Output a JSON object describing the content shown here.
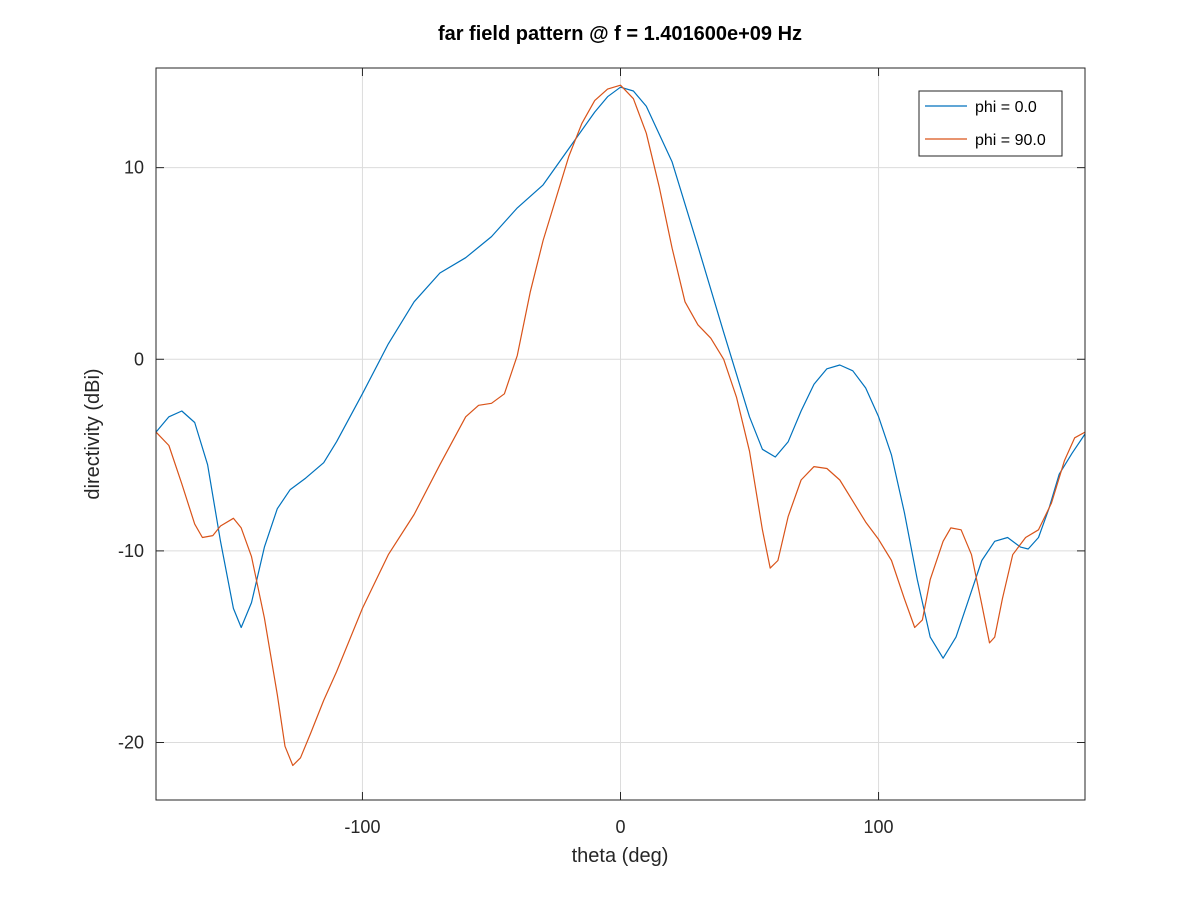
{
  "chart_data": {
    "type": "line",
    "title": "far field pattern @ f = 1.401600e+09 Hz",
    "xlabel": "theta (deg)",
    "ylabel": "directivity (dBi)",
    "xlim": [
      -180,
      180
    ],
    "ylim": [
      -23,
      15.2
    ],
    "xticks": [
      -100,
      0,
      100
    ],
    "xtick_labels": [
      "-100",
      "0",
      "100"
    ],
    "yticks": [
      -20,
      -10,
      0,
      10
    ],
    "ytick_labels": [
      "-20",
      "-10",
      "0",
      "10"
    ],
    "grid": true,
    "legend_position": "top-right",
    "series": [
      {
        "name": "phi = 0.0",
        "color": "#0072bd",
        "points": [
          [
            -180,
            -3.8
          ],
          [
            -175,
            -3.0
          ],
          [
            -170,
            -2.7
          ],
          [
            -165,
            -3.3
          ],
          [
            -160,
            -5.5
          ],
          [
            -155,
            -9.5
          ],
          [
            -150,
            -13.0
          ],
          [
            -147,
            -14.0
          ],
          [
            -143,
            -12.7
          ],
          [
            -138,
            -9.8
          ],
          [
            -133,
            -7.8
          ],
          [
            -128,
            -6.8
          ],
          [
            -122,
            -6.2
          ],
          [
            -115,
            -5.4
          ],
          [
            -110,
            -4.3
          ],
          [
            -100,
            -1.8
          ],
          [
            -90,
            0.8
          ],
          [
            -80,
            3.0
          ],
          [
            -70,
            4.5
          ],
          [
            -60,
            5.3
          ],
          [
            -50,
            6.4
          ],
          [
            -40,
            7.9
          ],
          [
            -30,
            9.1
          ],
          [
            -20,
            11.0
          ],
          [
            -10,
            12.9
          ],
          [
            -5,
            13.7
          ],
          [
            0,
            14.2
          ],
          [
            5,
            14.0
          ],
          [
            10,
            13.2
          ],
          [
            20,
            10.3
          ],
          [
            30,
            5.9
          ],
          [
            40,
            1.4
          ],
          [
            45,
            -0.8
          ],
          [
            50,
            -3.0
          ],
          [
            55,
            -4.7
          ],
          [
            60,
            -5.1
          ],
          [
            65,
            -4.3
          ],
          [
            70,
            -2.7
          ],
          [
            75,
            -1.3
          ],
          [
            80,
            -0.5
          ],
          [
            85,
            -0.3
          ],
          [
            90,
            -0.6
          ],
          [
            95,
            -1.5
          ],
          [
            100,
            -3.0
          ],
          [
            105,
            -5.0
          ],
          [
            110,
            -8.0
          ],
          [
            115,
            -11.5
          ],
          [
            120,
            -14.5
          ],
          [
            125,
            -15.6
          ],
          [
            130,
            -14.5
          ],
          [
            135,
            -12.5
          ],
          [
            140,
            -10.5
          ],
          [
            145,
            -9.5
          ],
          [
            150,
            -9.3
          ],
          [
            155,
            -9.8
          ],
          [
            158,
            -9.9
          ],
          [
            162,
            -9.3
          ],
          [
            166,
            -7.8
          ],
          [
            170,
            -6.0
          ],
          [
            175,
            -4.9
          ],
          [
            180,
            -3.9
          ]
        ]
      },
      {
        "name": "phi = 90.0",
        "color": "#d95319",
        "points": [
          [
            -180,
            -3.8
          ],
          [
            -175,
            -4.5
          ],
          [
            -170,
            -6.5
          ],
          [
            -165,
            -8.6
          ],
          [
            -162,
            -9.3
          ],
          [
            -158,
            -9.2
          ],
          [
            -155,
            -8.7
          ],
          [
            -150,
            -8.3
          ],
          [
            -147,
            -8.8
          ],
          [
            -143,
            -10.3
          ],
          [
            -138,
            -13.5
          ],
          [
            -133,
            -17.5
          ],
          [
            -130,
            -20.2
          ],
          [
            -127,
            -21.2
          ],
          [
            -124,
            -20.8
          ],
          [
            -120,
            -19.5
          ],
          [
            -115,
            -17.8
          ],
          [
            -110,
            -16.3
          ],
          [
            -100,
            -13.0
          ],
          [
            -90,
            -10.2
          ],
          [
            -80,
            -8.1
          ],
          [
            -70,
            -5.5
          ],
          [
            -60,
            -3.0
          ],
          [
            -55,
            -2.4
          ],
          [
            -50,
            -2.3
          ],
          [
            -45,
            -1.8
          ],
          [
            -40,
            0.2
          ],
          [
            -35,
            3.5
          ],
          [
            -30,
            6.2
          ],
          [
            -25,
            8.4
          ],
          [
            -20,
            10.6
          ],
          [
            -15,
            12.3
          ],
          [
            -10,
            13.5
          ],
          [
            -5,
            14.1
          ],
          [
            0,
            14.3
          ],
          [
            5,
            13.6
          ],
          [
            10,
            11.8
          ],
          [
            15,
            9.0
          ],
          [
            20,
            5.8
          ],
          [
            25,
            3.0
          ],
          [
            30,
            1.8
          ],
          [
            35,
            1.1
          ],
          [
            40,
            0.0
          ],
          [
            45,
            -2.0
          ],
          [
            50,
            -4.8
          ],
          [
            55,
            -8.9
          ],
          [
            58,
            -10.9
          ],
          [
            61,
            -10.5
          ],
          [
            65,
            -8.2
          ],
          [
            70,
            -6.3
          ],
          [
            75,
            -5.6
          ],
          [
            80,
            -5.7
          ],
          [
            85,
            -6.3
          ],
          [
            90,
            -7.4
          ],
          [
            95,
            -8.5
          ],
          [
            100,
            -9.4
          ],
          [
            105,
            -10.5
          ],
          [
            110,
            -12.5
          ],
          [
            114,
            -14.0
          ],
          [
            117,
            -13.6
          ],
          [
            120,
            -11.5
          ],
          [
            125,
            -9.5
          ],
          [
            128,
            -8.8
          ],
          [
            132,
            -8.9
          ],
          [
            136,
            -10.2
          ],
          [
            140,
            -12.8
          ],
          [
            143,
            -14.8
          ],
          [
            145,
            -14.5
          ],
          [
            148,
            -12.5
          ],
          [
            152,
            -10.2
          ],
          [
            157,
            -9.3
          ],
          [
            162,
            -8.9
          ],
          [
            167,
            -7.5
          ],
          [
            172,
            -5.3
          ],
          [
            176,
            -4.1
          ],
          [
            180,
            -3.8
          ]
        ]
      }
    ]
  }
}
